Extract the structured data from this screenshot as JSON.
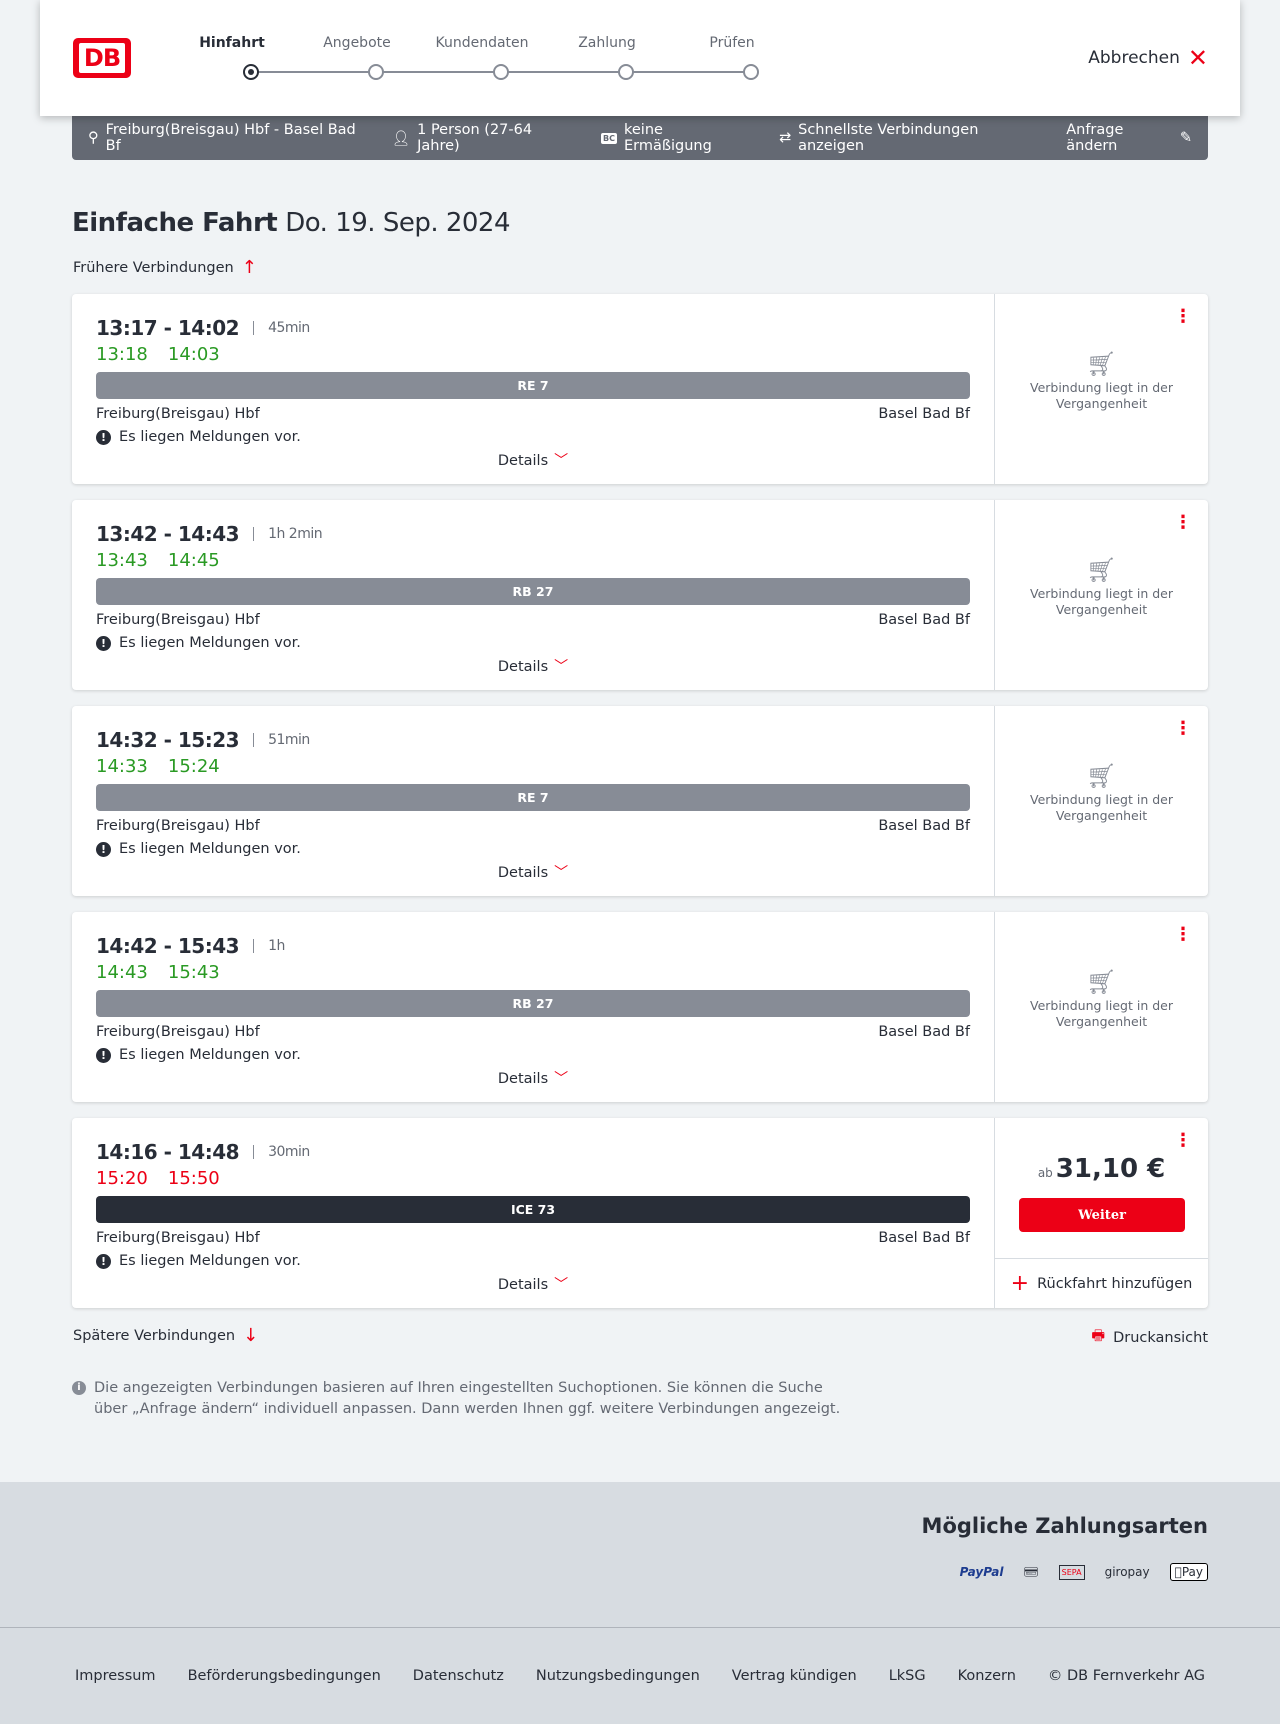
{
  "header": {
    "logo": "DB",
    "steps": [
      {
        "label": "Hinfahrt",
        "active": true
      },
      {
        "label": "Angebote"
      },
      {
        "label": "Kundendaten"
      },
      {
        "label": "Zahlung"
      },
      {
        "label": "Prüfen"
      }
    ],
    "cancel": "Abbrechen"
  },
  "search": {
    "route": "Freiburg(Breisgau) Hbf - Basel Bad Bf",
    "passengers": "1 Person (27-64 Jahre)",
    "bc_badge": "BC",
    "discount": "keine Ermäßigung",
    "fastest": "Schnellste Verbindungen anzeigen",
    "edit": "Anfrage ändern"
  },
  "title": {
    "main": "Einfache Fahrt",
    "date": "Do. 19. Sep. 2024"
  },
  "earlier": "Frühere Verbindungen",
  "later": "Spätere Verbindungen",
  "print": "Druckansicht",
  "connections": [
    {
      "times": "13:17 - 14:02",
      "duration": "45min",
      "rt_dep": "13:18",
      "rt_arr": "14:03",
      "rt_status": "on-time",
      "train": "RE 7",
      "from": "Freiburg(Breisgau) Hbf",
      "to": "Basel Bad Bf",
      "message": "Es liegen Meldungen vor.",
      "details": "Details",
      "past": "Verbindung liegt in der Vergangenheit"
    },
    {
      "times": "13:42 - 14:43",
      "duration": "1h 2min",
      "rt_dep": "13:43",
      "rt_arr": "14:45",
      "rt_status": "on-time",
      "train": "RB 27",
      "from": "Freiburg(Breisgau) Hbf",
      "to": "Basel Bad Bf",
      "message": "Es liegen Meldungen vor.",
      "details": "Details",
      "past": "Verbindung liegt in der Vergangenheit"
    },
    {
      "times": "14:32 - 15:23",
      "duration": "51min",
      "rt_dep": "14:33",
      "rt_arr": "15:24",
      "rt_status": "on-time",
      "train": "RE 7",
      "from": "Freiburg(Breisgau) Hbf",
      "to": "Basel Bad Bf",
      "message": "Es liegen Meldungen vor.",
      "details": "Details",
      "past": "Verbindung liegt in der Vergangenheit"
    },
    {
      "times": "14:42 - 15:43",
      "duration": "1h",
      "rt_dep": "14:43",
      "rt_arr": "15:43",
      "rt_status": "on-time",
      "train": "RB 27",
      "from": "Freiburg(Breisgau) Hbf",
      "to": "Basel Bad Bf",
      "message": "Es liegen Meldungen vor.",
      "details": "Details",
      "past": "Verbindung liegt in der Vergangenheit"
    },
    {
      "times": "14:16 - 14:48",
      "duration": "30min",
      "rt_dep": "15:20",
      "rt_arr": "15:50",
      "rt_status": "delayed",
      "train": "ICE 73",
      "from": "Freiburg(Breisgau) Hbf",
      "to": "Basel Bad Bf",
      "message": "Es liegen Meldungen vor.",
      "details": "Details",
      "price_prefix": "ab",
      "price": "31,10 €",
      "button": "Weiter",
      "return": "Rückfahrt hinzufügen"
    }
  ],
  "note": "Die angezeigten Verbindungen basieren auf Ihren eingestellten Suchoptionen. Sie können die Suche über „Anfrage ändern“ individuell anpassen. Dann werden Ihnen ggf. weitere Verbindungen angezeigt.",
  "payment": {
    "title": "Mögliche Zahlungsarten",
    "methods": [
      "PayPal",
      "Kreditkarte",
      "SEPA",
      "giropay",
      "Pay"
    ]
  },
  "footer": [
    "Impressum",
    "Beförderungsbedingungen",
    "Datenschutz",
    "Nutzungsbedingungen",
    "Vertrag kündigen",
    "LkSG",
    "Konzern",
    "© DB Fernverkehr AG"
  ],
  "colors": {
    "brand": "#ec0016",
    "on_time": "#2a9a24",
    "delayed": "#ec0016",
    "bar": "#646973"
  }
}
